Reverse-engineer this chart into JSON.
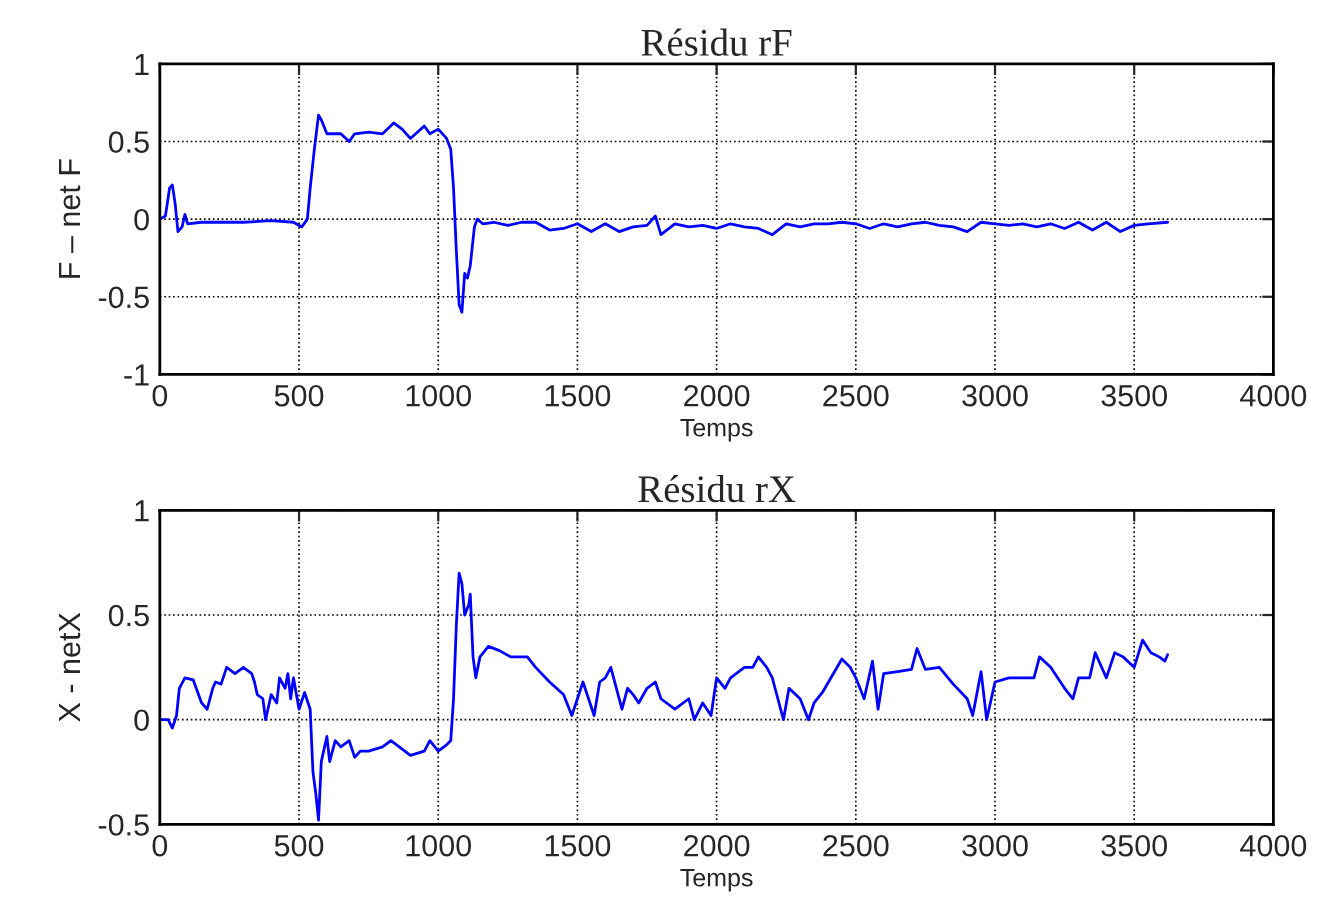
{
  "chart_data": [
    {
      "type": "line",
      "title": "Résidu rF",
      "xlabel": "Temps",
      "ylabel": "F – net F",
      "xlim": [
        0,
        4000
      ],
      "xticks": [
        0,
        500,
        1000,
        1500,
        2000,
        2500,
        3000,
        3500,
        4000
      ],
      "ylim": [
        -1,
        1
      ],
      "yticks": [
        -1,
        -0.5,
        0,
        0.5,
        1
      ],
      "grid": true,
      "line_style": "solid",
      "series": [
        {
          "color": "#0000ff",
          "x": [
            0,
            20,
            35,
            45,
            55,
            65,
            80,
            90,
            100,
            150,
            200,
            300,
            400,
            480,
            510,
            530,
            540,
            555,
            570,
            580,
            600,
            650,
            680,
            700,
            750,
            800,
            840,
            870,
            900,
            950,
            970,
            1000,
            1030,
            1045,
            1055,
            1065,
            1075,
            1085,
            1095,
            1105,
            1115,
            1130,
            1140,
            1160,
            1200,
            1250,
            1300,
            1350,
            1400,
            1450,
            1500,
            1550,
            1600,
            1650,
            1700,
            1750,
            1780,
            1800,
            1850,
            1900,
            1950,
            2000,
            2050,
            2100,
            2150,
            2200,
            2250,
            2300,
            2350,
            2400,
            2450,
            2500,
            2550,
            2600,
            2650,
            2700,
            2750,
            2800,
            2850,
            2900,
            2950,
            3000,
            3050,
            3100,
            3150,
            3200,
            3250,
            3300,
            3350,
            3400,
            3450,
            3500,
            3550,
            3620
          ],
          "values": [
            0,
            0.02,
            0.2,
            0.22,
            0.1,
            -0.08,
            -0.05,
            0.03,
            -0.03,
            -0.02,
            -0.02,
            -0.02,
            -0.01,
            -0.02,
            -0.05,
            0,
            0.2,
            0.45,
            0.67,
            0.64,
            0.55,
            0.55,
            0.5,
            0.55,
            0.56,
            0.55,
            0.62,
            0.58,
            0.52,
            0.6,
            0.55,
            0.58,
            0.52,
            0.45,
            0.2,
            -0.2,
            -0.55,
            -0.6,
            -0.35,
            -0.38,
            -0.3,
            -0.05,
            0,
            -0.03,
            -0.02,
            -0.04,
            -0.02,
            -0.02,
            -0.07,
            -0.06,
            -0.03,
            -0.08,
            -0.03,
            -0.08,
            -0.05,
            -0.04,
            0.02,
            -0.1,
            -0.03,
            -0.05,
            -0.04,
            -0.06,
            -0.03,
            -0.05,
            -0.06,
            -0.1,
            -0.03,
            -0.05,
            -0.03,
            -0.03,
            -0.02,
            -0.03,
            -0.06,
            -0.03,
            -0.05,
            -0.03,
            -0.02,
            -0.04,
            -0.05,
            -0.08,
            -0.02,
            -0.03,
            -0.04,
            -0.03,
            -0.05,
            -0.03,
            -0.06,
            -0.02,
            -0.07,
            -0.02,
            -0.08,
            -0.04,
            -0.03,
            -0.02
          ]
        }
      ]
    },
    {
      "type": "line",
      "title": "Résidu rX",
      "xlabel": "Temps",
      "ylabel": "X - netX",
      "xlim": [
        0,
        4000
      ],
      "xticks": [
        0,
        500,
        1000,
        1500,
        2000,
        2500,
        3000,
        3500,
        4000
      ],
      "ylim": [
        -0.5,
        1
      ],
      "yticks": [
        -0.5,
        0,
        0.5,
        1
      ],
      "grid": true,
      "line_style": "solid",
      "series": [
        {
          "color": "#0000ff",
          "x": [
            0,
            30,
            45,
            60,
            70,
            90,
            120,
            150,
            170,
            190,
            200,
            220,
            240,
            270,
            300,
            330,
            340,
            350,
            370,
            380,
            400,
            420,
            430,
            450,
            460,
            470,
            480,
            500,
            520,
            540,
            550,
            560,
            570,
            580,
            600,
            610,
            630,
            650,
            680,
            700,
            720,
            750,
            800,
            830,
            860,
            900,
            950,
            970,
            1000,
            1030,
            1045,
            1055,
            1065,
            1075,
            1085,
            1095,
            1110,
            1115,
            1125,
            1135,
            1150,
            1180,
            1220,
            1260,
            1290,
            1320,
            1350,
            1400,
            1450,
            1480,
            1500,
            1520,
            1540,
            1560,
            1580,
            1600,
            1620,
            1640,
            1660,
            1680,
            1700,
            1720,
            1750,
            1780,
            1800,
            1850,
            1900,
            1920,
            1950,
            1980,
            2000,
            2030,
            2050,
            2100,
            2130,
            2150,
            2180,
            2200,
            2220,
            2240,
            2260,
            2300,
            2330,
            2350,
            2380,
            2450,
            2480,
            2500,
            2530,
            2560,
            2580,
            2600,
            2650,
            2700,
            2720,
            2750,
            2800,
            2850,
            2900,
            2920,
            2950,
            2970,
            3000,
            3050,
            3100,
            3140,
            3160,
            3200,
            3250,
            3280,
            3300,
            3340,
            3360,
            3400,
            3430,
            3460,
            3500,
            3530,
            3560,
            3590,
            3610,
            3620
          ],
          "values": [
            0,
            0,
            -0.04,
            0.02,
            0.15,
            0.2,
            0.19,
            0.08,
            0.05,
            0.15,
            0.18,
            0.17,
            0.25,
            0.22,
            0.25,
            0.22,
            0.18,
            0.12,
            0.1,
            0.0,
            0.12,
            0.08,
            0.2,
            0.15,
            0.22,
            0.1,
            0.2,
            0.05,
            0.13,
            0.05,
            -0.25,
            -0.35,
            -0.48,
            -0.2,
            -0.08,
            -0.2,
            -0.1,
            -0.13,
            -0.1,
            -0.18,
            -0.15,
            -0.15,
            -0.13,
            -0.1,
            -0.13,
            -0.17,
            -0.15,
            -0.1,
            -0.15,
            -0.12,
            -0.1,
            0.1,
            0.45,
            0.7,
            0.65,
            0.5,
            0.55,
            0.6,
            0.3,
            0.2,
            0.3,
            0.35,
            0.33,
            0.3,
            0.3,
            0.3,
            0.25,
            0.18,
            0.12,
            0.02,
            0.1,
            0.18,
            0.1,
            0.02,
            0.18,
            0.2,
            0.25,
            0.15,
            0.05,
            0.15,
            0.12,
            0.08,
            0.15,
            0.18,
            0.1,
            0.05,
            0.1,
            0.0,
            0.08,
            0.02,
            0.2,
            0.15,
            0.2,
            0.25,
            0.25,
            0.3,
            0.25,
            0.2,
            0.1,
            0.0,
            0.15,
            0.1,
            0.0,
            0.08,
            0.13,
            0.29,
            0.25,
            0.2,
            0.1,
            0.28,
            0.05,
            0.22,
            0.23,
            0.24,
            0.34,
            0.24,
            0.25,
            0.17,
            0.1,
            0.02,
            0.23,
            0.0,
            0.18,
            0.2,
            0.2,
            0.2,
            0.3,
            0.25,
            0.15,
            0.1,
            0.2,
            0.2,
            0.32,
            0.2,
            0.32,
            0.3,
            0.25,
            0.38,
            0.32,
            0.3,
            0.28,
            0.31
          ]
        }
      ]
    }
  ]
}
